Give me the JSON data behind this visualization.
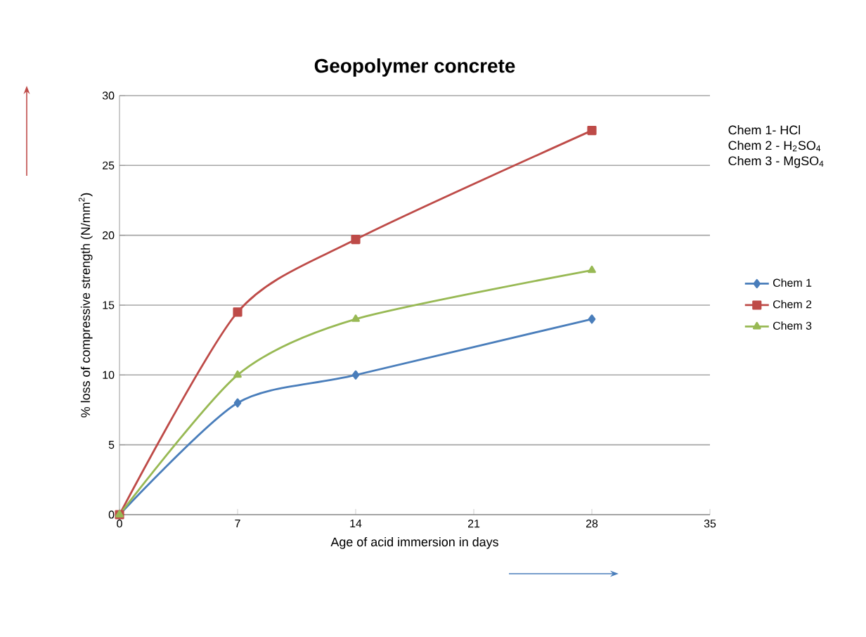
{
  "chart_data": {
    "type": "line",
    "title": "Geopolymer concrete",
    "xlabel": "Age of acid immersion in days",
    "ylabel": "% loss of compressive strength (N/mm$^{2}$)",
    "annotations": [
      "Chem 1- HCl",
      "Chem 2 - H$_{2}$SO$_{4}$",
      "Chem 3 - MgSO$_{4}$"
    ],
    "x": [
      0,
      7,
      14,
      28
    ],
    "series": [
      {
        "name": "Chem 1",
        "color": "#4a7ebb",
        "marker": "diamond",
        "values": [
          0,
          8,
          10,
          14
        ]
      },
      {
        "name": "Chem 2",
        "color": "#be4b48",
        "marker": "square",
        "values": [
          0,
          14.5,
          19.7,
          27.5
        ]
      },
      {
        "name": "Chem 3",
        "color": "#98b954",
        "marker": "triangle",
        "values": [
          0,
          10,
          14,
          17.5
        ]
      }
    ],
    "xlim": [
      0,
      35
    ],
    "xticks": [
      0,
      7,
      14,
      21,
      28,
      35
    ],
    "ylim": [
      0,
      30
    ],
    "yticks": [
      0,
      5,
      10,
      15,
      20,
      25,
      30
    ],
    "grid": "y",
    "legend": "right",
    "line_style": "solid"
  }
}
